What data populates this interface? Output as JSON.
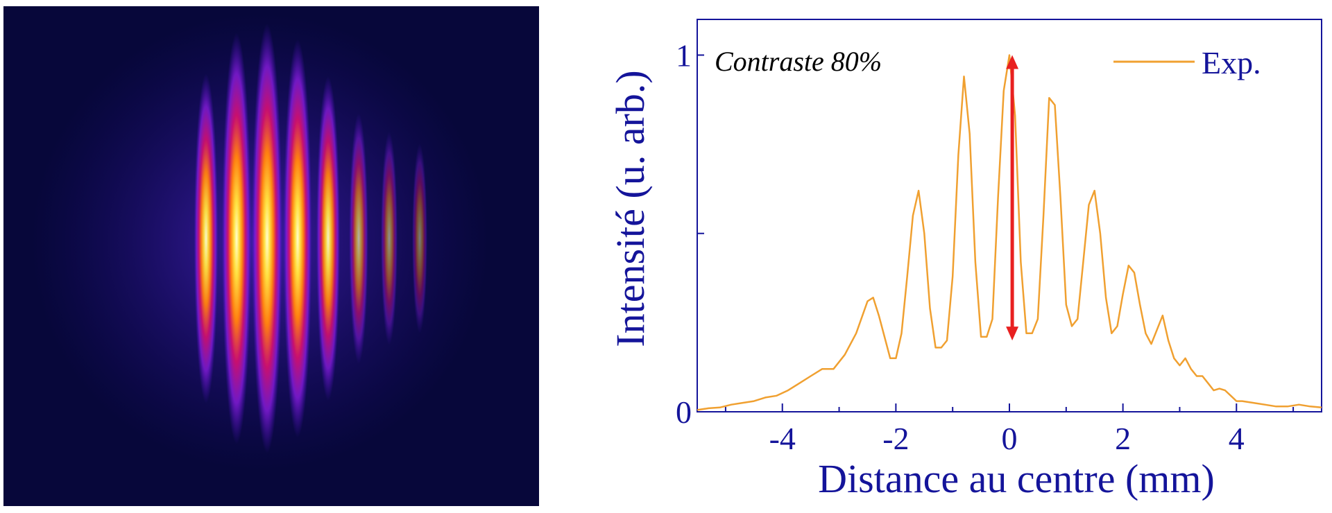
{
  "colors": {
    "axis": "#14149a",
    "series": "#f0a030",
    "arrow": "#e82020",
    "fringe_bg": "#07073a"
  },
  "image_panel": {
    "fringes": [
      {
        "x": -1.6,
        "level": 0.62
      },
      {
        "x": -0.8,
        "level": 0.93
      },
      {
        "x": 0.0,
        "level": 1.0
      },
      {
        "x": 0.8,
        "level": 0.88
      },
      {
        "x": 1.6,
        "level": 0.6
      },
      {
        "x": 2.4,
        "level": 0.32
      },
      {
        "x": 3.2,
        "level": 0.18
      },
      {
        "x": 4.0,
        "level": 0.09
      }
    ]
  },
  "chart_data": {
    "type": "line",
    "xlabel": "Distance au centre (mm)",
    "ylabel": "Intensité (u. arb.)",
    "xlim": [
      -5.5,
      5.5
    ],
    "ylim": [
      0,
      1.1
    ],
    "xticks": [
      -4,
      -2,
      0,
      2,
      4
    ],
    "xtick_labels": [
      "-4",
      "-2",
      "0",
      "2",
      "4"
    ],
    "yticks": [
      0,
      1
    ],
    "ytick_labels": [
      "0",
      "1"
    ],
    "grid": false,
    "legend_position": "top-right",
    "annotation": "Contraste 80%",
    "arrow": {
      "x": 0.05,
      "y_from": 0.2,
      "y_to": 1.0
    },
    "series": [
      {
        "name": "Exp.",
        "x": [
          -5.5,
          -5.3,
          -5.1,
          -4.9,
          -4.7,
          -4.5,
          -4.3,
          -4.1,
          -3.9,
          -3.7,
          -3.5,
          -3.3,
          -3.1,
          -2.9,
          -2.7,
          -2.5,
          -2.4,
          -2.3,
          -2.1,
          -2.0,
          -1.9,
          -1.8,
          -1.7,
          -1.6,
          -1.5,
          -1.4,
          -1.3,
          -1.2,
          -1.1,
          -1.0,
          -0.9,
          -0.8,
          -0.7,
          -0.6,
          -0.5,
          -0.4,
          -0.3,
          -0.2,
          -0.1,
          0.0,
          0.1,
          0.2,
          0.3,
          0.4,
          0.5,
          0.6,
          0.7,
          0.8,
          0.9,
          1.0,
          1.1,
          1.2,
          1.3,
          1.4,
          1.5,
          1.6,
          1.7,
          1.8,
          1.9,
          2.0,
          2.1,
          2.2,
          2.3,
          2.4,
          2.5,
          2.6,
          2.7,
          2.8,
          2.9,
          3.0,
          3.1,
          3.2,
          3.3,
          3.4,
          3.5,
          3.6,
          3.7,
          3.8,
          3.9,
          4.0,
          4.1,
          4.3,
          4.5,
          4.7,
          4.9,
          5.1,
          5.3,
          5.5
        ],
        "y": [
          0.005,
          0.01,
          0.012,
          0.02,
          0.025,
          0.03,
          0.04,
          0.045,
          0.06,
          0.08,
          0.1,
          0.12,
          0.12,
          0.16,
          0.22,
          0.31,
          0.32,
          0.27,
          0.15,
          0.15,
          0.22,
          0.38,
          0.55,
          0.62,
          0.5,
          0.29,
          0.18,
          0.18,
          0.2,
          0.38,
          0.72,
          0.94,
          0.78,
          0.42,
          0.21,
          0.21,
          0.26,
          0.6,
          0.9,
          1.0,
          0.83,
          0.42,
          0.22,
          0.22,
          0.26,
          0.55,
          0.88,
          0.86,
          0.6,
          0.3,
          0.24,
          0.26,
          0.42,
          0.58,
          0.62,
          0.5,
          0.32,
          0.22,
          0.24,
          0.33,
          0.41,
          0.39,
          0.3,
          0.22,
          0.19,
          0.23,
          0.27,
          0.2,
          0.15,
          0.13,
          0.15,
          0.12,
          0.1,
          0.1,
          0.08,
          0.06,
          0.065,
          0.06,
          0.045,
          0.03,
          0.03,
          0.025,
          0.02,
          0.015,
          0.015,
          0.02,
          0.015,
          0.012
        ]
      }
    ]
  }
}
